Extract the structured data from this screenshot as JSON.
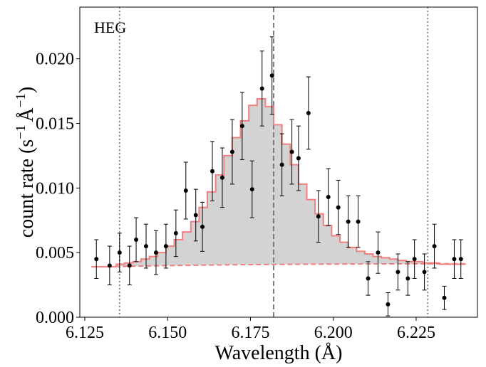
{
  "chart_data": {
    "type": "line",
    "panel_label": "HEG",
    "xlabel": "Wavelength (Å)",
    "ylabel": "count rate (s",
    "ylabel_sup1": "−1",
    "ylabel_mid": "Å",
    "ylabel_sup2": "−1",
    "ylabel_end": ")",
    "xlim": [
      6.1235,
      6.2435
    ],
    "ylim": [
      0.0,
      0.024
    ],
    "x_ticks": [
      6.125,
      6.15,
      6.175,
      6.2,
      6.225
    ],
    "x_tick_labels": [
      "6.125",
      "6.150",
      "6.175",
      "6.200",
      "6.225"
    ],
    "y_ticks": [
      0.0,
      0.005,
      0.01,
      0.015,
      0.02
    ],
    "y_tick_labels": [
      "0.000",
      "0.005",
      "0.010",
      "0.015",
      "0.020"
    ],
    "vlines": [
      {
        "x": 6.1355,
        "style": "dotted",
        "color": "#808080"
      },
      {
        "x": 6.182,
        "style": "dashed",
        "color": "#707070"
      },
      {
        "x": 6.2285,
        "style": "dotted",
        "color": "#808080"
      }
    ],
    "series": [
      {
        "name": "data",
        "kind": "errorbar",
        "color": "#000000",
        "x": [
          6.1285,
          6.1325,
          6.1355,
          6.1385,
          6.1405,
          6.1435,
          6.1465,
          6.1495,
          6.1525,
          6.1555,
          6.1585,
          6.1605,
          6.1635,
          6.1665,
          6.1695,
          6.1725,
          6.1755,
          6.1785,
          6.1815,
          6.1845,
          6.1875,
          6.1895,
          6.1925,
          6.1955,
          6.1985,
          6.2015,
          6.2045,
          6.2075,
          6.2105,
          6.2135,
          6.2165,
          6.2195,
          6.2225,
          6.2245,
          6.2275,
          6.2305,
          6.2335,
          6.2365,
          6.2385
        ],
        "y": [
          0.0045,
          0.004,
          0.005,
          0.004,
          0.006,
          0.0055,
          0.005,
          0.0055,
          0.0065,
          0.0098,
          0.0079,
          0.007,
          0.0113,
          0.0108,
          0.0128,
          0.0148,
          0.0099,
          0.0177,
          0.0187,
          0.0118,
          0.0128,
          0.0123,
          0.0158,
          0.0078,
          0.0093,
          0.0085,
          0.0074,
          0.0074,
          0.003,
          0.005,
          0.001,
          0.0035,
          0.003,
          0.0045,
          0.0035,
          0.0055,
          0.0015,
          0.0045,
          0.0045
        ],
        "yerr": [
          0.0015,
          0.0015,
          0.0015,
          0.0015,
          0.0017,
          0.0017,
          0.0017,
          0.0017,
          0.0018,
          0.0022,
          0.002,
          0.0019,
          0.0023,
          0.0023,
          0.0025,
          0.0026,
          0.0022,
          0.0029,
          0.003,
          0.0024,
          0.0025,
          0.0025,
          0.0028,
          0.002,
          0.0022,
          0.0021,
          0.002,
          0.002,
          0.0013,
          0.0016,
          0.0009,
          0.0014,
          0.0013,
          0.0015,
          0.0014,
          0.0017,
          0.0009,
          0.0015,
          0.0015
        ]
      },
      {
        "name": "model",
        "kind": "step-filled",
        "color": "#f08080",
        "fill": "#d3d3d3",
        "x_edges": [
          6.127,
          6.1345,
          6.137,
          6.1395,
          6.142,
          6.1445,
          6.147,
          6.1495,
          6.152,
          6.1545,
          6.157,
          6.1595,
          6.162,
          6.1645,
          6.167,
          6.1695,
          6.172,
          6.1745,
          6.177,
          6.1795,
          6.182,
          6.1845,
          6.187,
          6.1895,
          6.192,
          6.1945,
          6.197,
          6.1995,
          6.202,
          6.2045,
          6.207,
          6.2095,
          6.212,
          6.2145,
          6.217,
          6.2195,
          6.222,
          6.2245,
          6.227,
          6.2295,
          6.232,
          6.2345,
          6.237,
          6.24
        ],
        "values": [
          0.0039,
          0.0041,
          0.0042,
          0.0043,
          0.0045,
          0.0047,
          0.005,
          0.0055,
          0.006,
          0.0066,
          0.0074,
          0.0085,
          0.0097,
          0.011,
          0.0125,
          0.0139,
          0.0152,
          0.0164,
          0.0169,
          0.0163,
          0.0149,
          0.0134,
          0.0118,
          0.0103,
          0.0091,
          0.008,
          0.0071,
          0.0063,
          0.0058,
          0.0054,
          0.0051,
          0.0049,
          0.0047,
          0.0046,
          0.0045,
          0.0044,
          0.0043,
          0.0043,
          0.0042,
          0.0042,
          0.0041,
          0.0041,
          0.0041
        ]
      },
      {
        "name": "continuum",
        "kind": "dashed-line",
        "color": "#f08080",
        "x": [
          6.127,
          6.14,
          6.15,
          6.16,
          6.17,
          6.18,
          6.19,
          6.2,
          6.21,
          6.22,
          6.23,
          6.24
        ],
        "y": [
          0.0039,
          0.00395,
          0.004,
          0.00403,
          0.00406,
          0.00408,
          0.0041,
          0.00411,
          0.00412,
          0.00413,
          0.00413,
          0.00414
        ]
      }
    ]
  }
}
